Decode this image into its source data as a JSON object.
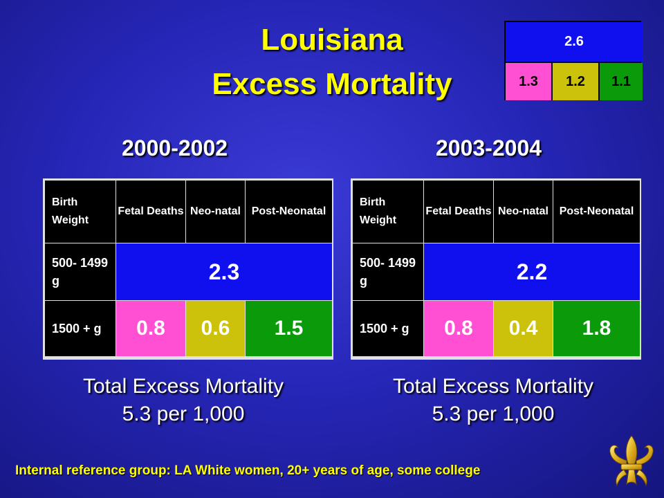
{
  "title": {
    "line1": "Louisiana",
    "line2": "Excess Mortality"
  },
  "summary_box": {
    "top": "2.6",
    "bottom": [
      "1.3",
      "1.2",
      "1.1"
    ]
  },
  "left": {
    "period": "2000-2002",
    "headers": [
      "Birth Weight",
      "Fetal Deaths",
      "Neo-natal",
      "Post-Neonatal"
    ],
    "row1_label": "500- 1499 g",
    "row1_value": "2.3",
    "row2_label": "1500 + g",
    "row2_values": [
      "0.8",
      "0.6",
      "1.5"
    ],
    "total_line1": "Total Excess Mortality",
    "total_line2": "5.3 per 1,000"
  },
  "right": {
    "period": "2003-2004",
    "headers": [
      "Birth Weight",
      "Fetal Deaths",
      "Neo-natal",
      "Post-Neonatal"
    ],
    "row1_label": "500- 1499 g",
    "row1_value": "2.2",
    "row2_label": "1500 + g",
    "row2_values": [
      "0.8",
      "0.4",
      "1.8"
    ],
    "total_line1": "Total Excess Mortality",
    "total_line2": "5.3 per 1,000"
  },
  "footnote": "Internal reference group: LA White women, 20+ years of age, some college",
  "colors": {
    "blue_cell": "#1010ee",
    "pink": "#ff4fd2",
    "olive": "#cdc20b",
    "green": "#0a9a0a",
    "title": "#ffff00"
  },
  "icons": {
    "logo": "fleur-de-lis-icon"
  }
}
